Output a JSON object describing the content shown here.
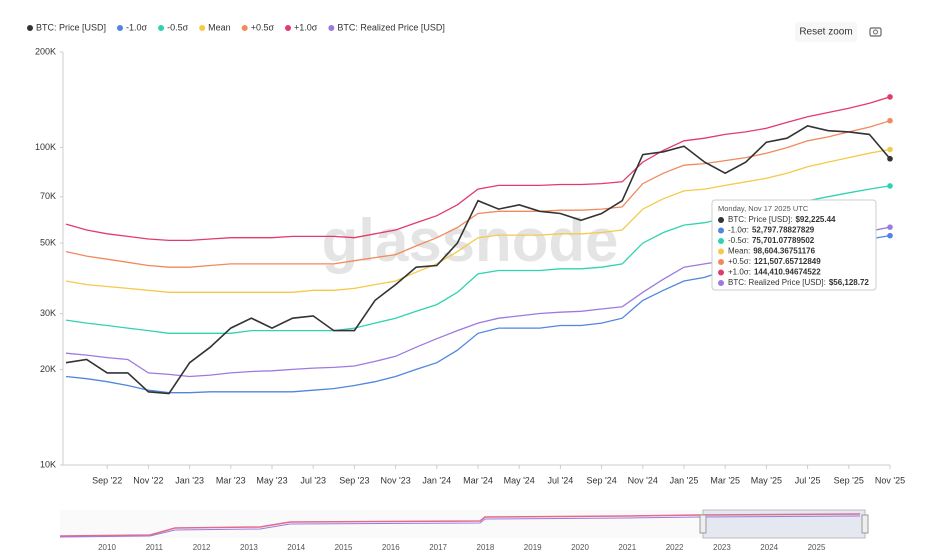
{
  "chart_data": {
    "type": "line",
    "watermark": "glassnode",
    "reset_button": "Reset zoom",
    "log_scale": true,
    "grid": false,
    "legend_position": "top-left",
    "x": [
      "2022-07",
      "2022-08",
      "2022-09",
      "2022-10",
      "2022-11",
      "2022-12",
      "2023-01",
      "2023-02",
      "2023-03",
      "2023-04",
      "2023-05",
      "2023-06",
      "2023-07",
      "2023-08",
      "2023-09",
      "2023-10",
      "2023-11",
      "2023-12",
      "2024-01",
      "2024-02",
      "2024-03",
      "2024-04",
      "2024-05",
      "2024-06",
      "2024-07",
      "2024-08",
      "2024-09",
      "2024-10",
      "2024-11",
      "2024-12",
      "2025-01",
      "2025-02",
      "2025-03",
      "2025-04",
      "2025-05",
      "2025-06",
      "2025-07",
      "2025-08",
      "2025-09",
      "2025-10",
      "2025-11"
    ],
    "xlim": [
      "2022-07",
      "2025-11"
    ],
    "xticks": [
      {
        "value": "2022-09",
        "label": "Sep '22"
      },
      {
        "value": "2022-11",
        "label": "Nov '22"
      },
      {
        "value": "2023-01",
        "label": "Jan '23"
      },
      {
        "value": "2023-03",
        "label": "Mar '23"
      },
      {
        "value": "2023-05",
        "label": "May '23"
      },
      {
        "value": "2023-07",
        "label": "Jul '23"
      },
      {
        "value": "2023-09",
        "label": "Sep '23"
      },
      {
        "value": "2023-11",
        "label": "Nov '23"
      },
      {
        "value": "2024-01",
        "label": "Jan '24"
      },
      {
        "value": "2024-03",
        "label": "Mar '24"
      },
      {
        "value": "2024-05",
        "label": "May '24"
      },
      {
        "value": "2024-07",
        "label": "Jul '24"
      },
      {
        "value": "2024-09",
        "label": "Sep '24"
      },
      {
        "value": "2024-11",
        "label": "Nov '24"
      },
      {
        "value": "2025-01",
        "label": "Jan '25"
      },
      {
        "value": "2025-03",
        "label": "Mar '25"
      },
      {
        "value": "2025-05",
        "label": "May '25"
      },
      {
        "value": "2025-07",
        "label": "Jul '25"
      },
      {
        "value": "2025-09",
        "label": "Sep '25"
      },
      {
        "value": "2025-11",
        "label": "Nov '25"
      }
    ],
    "ylim": [
      10000,
      200000
    ],
    "yticks": [
      {
        "value": 10000,
        "label": "10K"
      },
      {
        "value": 20000,
        "label": "20K"
      },
      {
        "value": 30000,
        "label": "30K"
      },
      {
        "value": 50000,
        "label": "50K"
      },
      {
        "value": 70000,
        "label": "70K"
      },
      {
        "value": 100000,
        "label": "100K"
      },
      {
        "value": 200000,
        "label": "200K"
      }
    ],
    "series": [
      {
        "name": "BTC: Price [USD]",
        "color": "#333333",
        "values": [
          21000,
          21500,
          19500,
          19500,
          17000,
          16800,
          21000,
          23500,
          27000,
          29000,
          27000,
          29000,
          29500,
          26500,
          26500,
          33000,
          37000,
          42000,
          42500,
          50000,
          68000,
          64000,
          66000,
          63000,
          62000,
          59000,
          62000,
          68000,
          95000,
          97000,
          101000,
          90000,
          83000,
          90000,
          104000,
          107000,
          117000,
          113000,
          112000,
          110000,
          92225
        ]
      },
      {
        "name": "-1.0σ",
        "color": "#4f86e0",
        "values": [
          19000,
          18700,
          18300,
          17800,
          17200,
          16900,
          16900,
          17000,
          17000,
          17000,
          17000,
          17000,
          17200,
          17400,
          17800,
          18300,
          19000,
          20000,
          21000,
          23000,
          26000,
          27000,
          27000,
          27000,
          27500,
          27500,
          28000,
          29000,
          33000,
          35500,
          38000,
          39000,
          41000,
          42000,
          43000,
          45000,
          47000,
          48500,
          50000,
          51500,
          52797
        ]
      },
      {
        "name": "-0.5σ",
        "color": "#2fd3b1",
        "values": [
          28600,
          28000,
          27500,
          27000,
          26500,
          26000,
          26000,
          26000,
          26000,
          26500,
          26500,
          26500,
          26500,
          26500,
          27000,
          28000,
          29000,
          30500,
          32000,
          35000,
          40000,
          41000,
          41000,
          41000,
          41500,
          41500,
          42000,
          43000,
          50000,
          54000,
          57000,
          58000,
          60000,
          61500,
          63000,
          65500,
          68000,
          70000,
          72000,
          74000,
          75701
        ]
      },
      {
        "name": "Mean",
        "color": "#f5c94a",
        "values": [
          38000,
          37000,
          36500,
          36000,
          35500,
          35000,
          35000,
          35000,
          35000,
          35000,
          35000,
          35000,
          35500,
          35500,
          36000,
          37000,
          38000,
          40500,
          43000,
          47000,
          52000,
          53000,
          53000,
          53000,
          53500,
          53500,
          54000,
          55000,
          64000,
          69000,
          73000,
          74000,
          76000,
          78000,
          80000,
          83000,
          87000,
          90000,
          93000,
          96000,
          98604
        ]
      },
      {
        "name": "+0.5σ",
        "color": "#f08a5d",
        "values": [
          47000,
          45500,
          44500,
          43500,
          42500,
          42000,
          42000,
          42500,
          43000,
          43000,
          43000,
          43000,
          43000,
          43000,
          44000,
          45000,
          46000,
          49000,
          52000,
          56000,
          62000,
          63000,
          63000,
          63000,
          63500,
          63500,
          64000,
          65000,
          77000,
          83000,
          88000,
          89000,
          91000,
          93000,
          96000,
          100000,
          105000,
          108000,
          112000,
          116000,
          121507
        ]
      },
      {
        "name": "+1.0σ",
        "color": "#e23b6a",
        "values": [
          57400,
          55000,
          53500,
          52500,
          51500,
          51000,
          51000,
          51500,
          52000,
          52000,
          52000,
          52500,
          52500,
          52500,
          52000,
          53500,
          55000,
          58000,
          61000,
          66000,
          74000,
          76000,
          76000,
          76000,
          76500,
          76500,
          77000,
          78000,
          90000,
          98000,
          105000,
          107000,
          110000,
          112000,
          115000,
          120000,
          125000,
          129000,
          133000,
          138000,
          144410
        ]
      },
      {
        "name": "BTC: Realized Price [USD]",
        "color": "#9b7be0",
        "values": [
          22500,
          22200,
          21800,
          21500,
          19500,
          19300,
          19000,
          19200,
          19500,
          19700,
          19800,
          20000,
          20200,
          20300,
          20500,
          21200,
          22000,
          23500,
          25000,
          26500,
          28000,
          29000,
          29500,
          30000,
          30300,
          30500,
          31000,
          31500,
          35000,
          38500,
          42000,
          43000,
          44000,
          45000,
          46000,
          48000,
          50000,
          51500,
          53000,
          54500,
          56129
        ]
      }
    ],
    "tooltip": {
      "title": "Monday, Nov 17 2025 UTC",
      "items": [
        {
          "label": "BTC: Price [USD]:",
          "value": "$92,225.44"
        },
        {
          "label": "-1.0σ:",
          "value": "52,797.78827829"
        },
        {
          "label": "-0.5σ:",
          "value": "75,701.07789502"
        },
        {
          "label": "Mean:",
          "value": "98,604.36751176"
        },
        {
          "label": "+0.5σ:",
          "value": "121,507.65712849"
        },
        {
          "label": "+1.0σ:",
          "value": "144,410.94674522"
        },
        {
          "label": "BTC: Realized Price [USD]:",
          "value": "$56,128.72"
        }
      ]
    },
    "navigator_years": [
      "2010",
      "2011",
      "2012",
      "2013",
      "2014",
      "2015",
      "2016",
      "2017",
      "2018",
      "2019",
      "2020",
      "2021",
      "2022",
      "2023",
      "2024",
      "2025"
    ]
  }
}
